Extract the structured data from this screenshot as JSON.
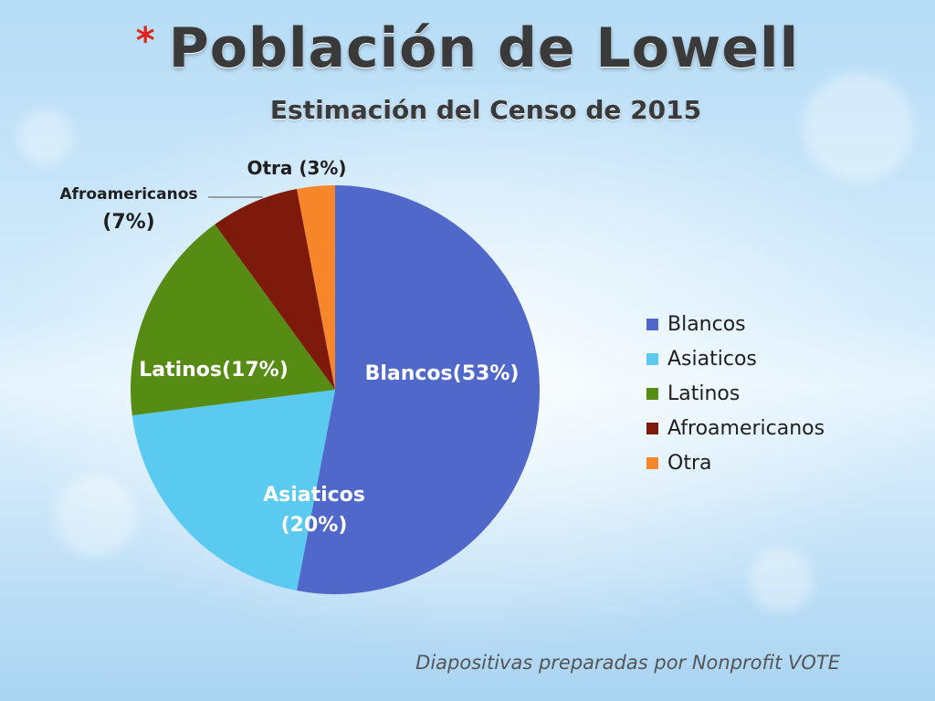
{
  "slide": {
    "title_bullet": "*",
    "title": "Población de Lowell",
    "subtitle": "Estimación del Censo de 2015",
    "footer": "Diapositivas preparadas por Nonprofit VOTE"
  },
  "chart_data": {
    "type": "pie",
    "title": "Población de Lowell",
    "subtitle": "Estimación del Censo de 2015",
    "unit": "%",
    "legend_position": "right",
    "slices": [
      {
        "name": "Blancos",
        "value": 53,
        "color": "#4f68c9",
        "label_lines": [
          "Blancos(53%)"
        ],
        "label_color": "#ffffff"
      },
      {
        "name": "Asiaticos",
        "value": 20,
        "color": "#5bcaf1",
        "label_lines": [
          "Asiaticos",
          "(20%)"
        ],
        "label_color": "#ffffff"
      },
      {
        "name": "Latinos",
        "value": 17,
        "color": "#568b14",
        "label_lines": [
          "Latinos(17%)"
        ],
        "label_color": "#ffffff"
      },
      {
        "name": "Afroamericanos",
        "value": 7,
        "color": "#7d1a0b",
        "label_lines": [
          "Afroamericanos",
          "(7%)"
        ],
        "label_color": "#1f1f1f"
      },
      {
        "name": "Otra",
        "value": 3,
        "color": "#f7852a",
        "label_lines": [
          "Otra (3%)"
        ],
        "label_color": "#1f1f1f"
      }
    ],
    "legend": [
      "Blancos",
      "Asiaticos",
      "Latinos",
      "Afroamericanos",
      "Otra"
    ]
  }
}
